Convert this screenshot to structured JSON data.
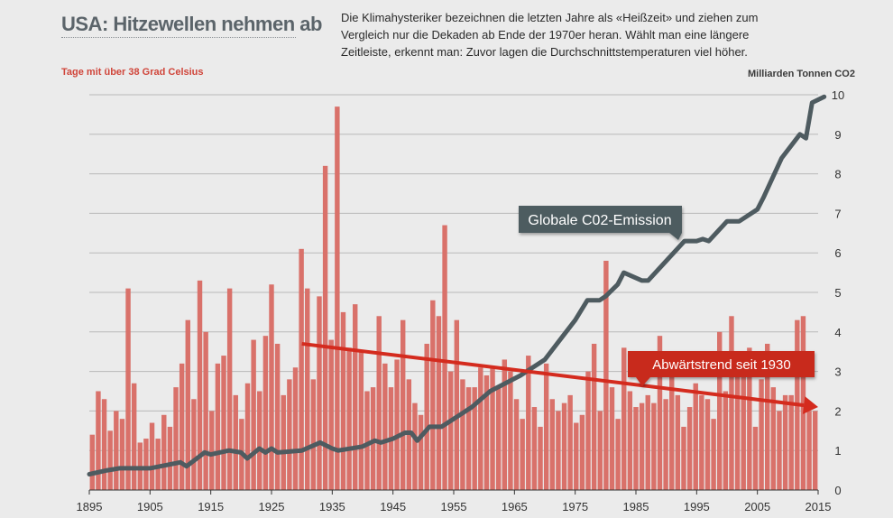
{
  "header": {
    "title": "USA: Hitzewellen nehmen ab",
    "subtitle": "Die Klimahysteriker bezeichnen die letzten Jahre als «Heißzeit» und ziehen zum Vergleich nur die Dekaden ab Ende der 1970er heran. Wählt man eine längere Zeitleiste, erkennt man: Zuvor lagen die Durchschnittstemperaturen viel höher."
  },
  "chart_data": {
    "type": "bar",
    "left_axis_label": "Tage mit über 38 Grad Celsius",
    "right_axis_label": "Milliarden Tonnen CO2",
    "xlim": [
      1895,
      2015
    ],
    "x_ticks": [
      1895,
      1905,
      1915,
      1925,
      1935,
      1945,
      1955,
      1965,
      1975,
      1985,
      1995,
      2005,
      2015
    ],
    "ylim": [
      0,
      10
    ],
    "y_ticks": [
      0,
      1,
      2,
      3,
      4,
      5,
      6,
      7,
      8,
      9,
      10
    ],
    "grid": true,
    "colors": {
      "bars": "#d9716a",
      "co2_line": "#4e5b60",
      "trend": "#d42b1e",
      "co2_label_bg": "#4e5b60",
      "trend_label_bg": "#c82a1c"
    },
    "series": [
      {
        "name": "Tage mit über 38 Grad Celsius",
        "x_start": 1895,
        "values": [
          1.4,
          2.5,
          2.3,
          1.5,
          2.0,
          1.8,
          5.1,
          2.7,
          1.2,
          1.3,
          1.7,
          1.3,
          1.9,
          1.6,
          2.6,
          3.2,
          4.3,
          2.3,
          5.3,
          4.0,
          2.0,
          3.2,
          3.4,
          5.1,
          2.4,
          1.8,
          2.7,
          3.8,
          2.5,
          3.9,
          5.2,
          3.7,
          2.4,
          2.8,
          3.1,
          6.1,
          5.1,
          2.8,
          4.9,
          8.2,
          3.8,
          9.7,
          4.5,
          3.6,
          4.7,
          3.5,
          2.5,
          2.6,
          4.4,
          3.2,
          2.6,
          3.3,
          4.3,
          2.8,
          2.2,
          1.9,
          3.7,
          4.8,
          4.4,
          6.7,
          3.0,
          4.3,
          2.8,
          2.6,
          2.6,
          3.1,
          2.9,
          3.1,
          2.6,
          3.3,
          3.0,
          2.3,
          1.8,
          3.4,
          2.1,
          1.6,
          3.2,
          2.3,
          2.0,
          2.2,
          2.4,
          1.7,
          1.9,
          3.0,
          3.7,
          2.0,
          5.8,
          2.6,
          1.8,
          3.6,
          2.5,
          2.1,
          2.2,
          2.4,
          2.2,
          3.9,
          2.3,
          2.9,
          2.4,
          1.6,
          2.1,
          2.7,
          2.4,
          2.3,
          1.8,
          4.0,
          2.5,
          4.4,
          3.1,
          3.0,
          3.6,
          1.6,
          2.8,
          3.7,
          2.6,
          2.0,
          2.4,
          2.4,
          4.3,
          4.4,
          2.0
        ],
        "extra": [
          2.0
        ]
      }
    ],
    "co2_line": {
      "name": "Globale C02-Emission",
      "points": [
        [
          1895,
          0.4
        ],
        [
          1898,
          0.5
        ],
        [
          1900,
          0.55
        ],
        [
          1905,
          0.55
        ],
        [
          1910,
          0.7
        ],
        [
          1911,
          0.6
        ],
        [
          1914,
          0.95
        ],
        [
          1915,
          0.9
        ],
        [
          1918,
          1.0
        ],
        [
          1920,
          0.95
        ],
        [
          1921,
          0.8
        ],
        [
          1923,
          1.05
        ],
        [
          1924,
          0.95
        ],
        [
          1925,
          1.05
        ],
        [
          1926,
          0.95
        ],
        [
          1930,
          1.0
        ],
        [
          1933,
          1.2
        ],
        [
          1935,
          1.05
        ],
        [
          1936,
          1.0
        ],
        [
          1940,
          1.1
        ],
        [
          1942,
          1.25
        ],
        [
          1943,
          1.2
        ],
        [
          1945,
          1.3
        ],
        [
          1947,
          1.45
        ],
        [
          1948,
          1.45
        ],
        [
          1949,
          1.25
        ],
        [
          1951,
          1.6
        ],
        [
          1953,
          1.6
        ],
        [
          1956,
          1.9
        ],
        [
          1958,
          2.1
        ],
        [
          1961,
          2.5
        ],
        [
          1966,
          2.9
        ],
        [
          1970,
          3.3
        ],
        [
          1973,
          3.9
        ],
        [
          1975,
          4.3
        ],
        [
          1977,
          4.8
        ],
        [
          1979,
          4.8
        ],
        [
          1980,
          4.9
        ],
        [
          1982,
          5.2
        ],
        [
          1983,
          5.5
        ],
        [
          1986,
          5.3
        ],
        [
          1987,
          5.3
        ],
        [
          1990,
          5.8
        ],
        [
          1993,
          6.3
        ],
        [
          1995,
          6.3
        ],
        [
          1996,
          6.35
        ],
        [
          1997,
          6.3
        ],
        [
          2000,
          6.8
        ],
        [
          2002,
          6.8
        ],
        [
          2005,
          7.1
        ],
        [
          2006,
          7.4
        ],
        [
          2009,
          8.4
        ],
        [
          2012,
          9.0
        ],
        [
          2013,
          8.9
        ],
        [
          2014,
          9.8
        ],
        [
          2016,
          9.95
        ]
      ]
    },
    "co2_label": "Globale C02-Emission",
    "trend": {
      "label": "Abwärtstrend seit 1930",
      "start": [
        1930,
        3.7
      ],
      "end": [
        2015,
        2.1
      ]
    }
  }
}
